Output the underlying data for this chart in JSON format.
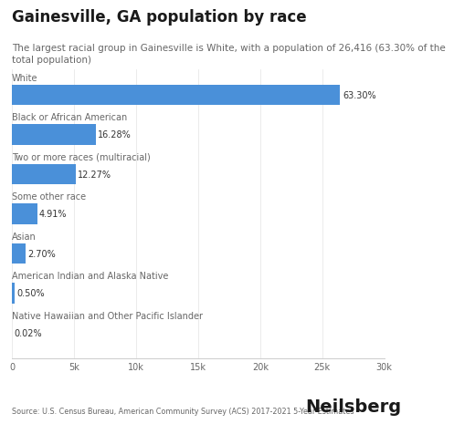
{
  "title": "Gainesville, GA population by race",
  "subtitle": "The largest racial group in Gainesville is White, with a population of 26,416 (63.30% of the\ntotal population)",
  "categories": [
    "White",
    "Black or African American",
    "Two or more races (multiracial)",
    "Some other race",
    "Asian",
    "American Indian and Alaska Native",
    "Native Hawaiian and Other Pacific Islander"
  ],
  "values": [
    26416,
    6791,
    5123,
    2050,
    1128,
    209,
    8
  ],
  "percentages": [
    "63.30%",
    "16.28%",
    "12.27%",
    "4.91%",
    "2.70%",
    "0.50%",
    "0.02%"
  ],
  "bar_color": "#4a90d9",
  "background_color": "#ffffff",
  "text_color": "#1a1a1a",
  "label_color": "#666666",
  "pct_color": "#333333",
  "source_text": "Source: U.S. Census Bureau, American Community Survey (ACS) 2017-2021 5-Year Estimates",
  "brand_text": "Neilsberg",
  "xlim": [
    0,
    30000
  ],
  "xticks": [
    0,
    5000,
    10000,
    15000,
    20000,
    25000,
    30000
  ],
  "xtick_labels": [
    "0",
    "5k",
    "10k",
    "15k",
    "20k",
    "25k",
    "30k"
  ],
  "title_fontsize": 12,
  "subtitle_fontsize": 7.5,
  "cat_fontsize": 7.0,
  "pct_fontsize": 7.0,
  "tick_fontsize": 7.0,
  "source_fontsize": 5.8,
  "brand_fontsize": 14
}
